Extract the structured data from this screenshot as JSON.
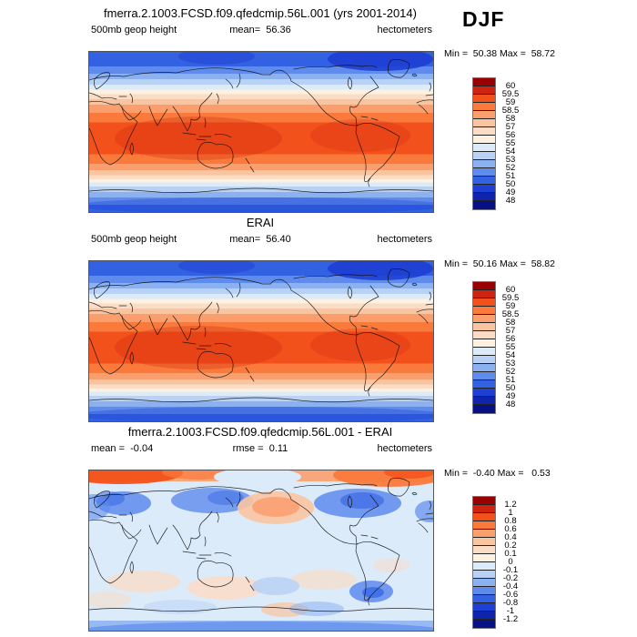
{
  "season_label": "DJF",
  "chart_data": {
    "type": "heatmap",
    "subtype": "filled-contour-world-maps",
    "season": "DJF",
    "projection": "cylindrical-equidistant-pacific-centered",
    "palette": [
      "#9b0000",
      "#ce2310",
      "#f3511b",
      "#fa7a3c",
      "#fb9e6e",
      "#f9c4a0",
      "#fbdcc5",
      "#fdf1e2",
      "#dcebfa",
      "#b8d1f5",
      "#8cb1f0",
      "#5e8bec",
      "#3261e2",
      "#1e3fd3",
      "#0e24ad",
      "#071185"
    ],
    "panels": [
      {
        "id": "model",
        "title": "fmerra.2.1003.FCSD.f09.qfedcmip.56L.001 (yrs 2001-2014)",
        "left_label": "500mb geop height",
        "center_label": "mean=  56.36",
        "units": "hectometers",
        "minmax_label": "Min =  50.38 Max =  58.72",
        "stats": {
          "mean": 56.36,
          "min": 50.38,
          "max": 58.72
        },
        "map_kind": "mean",
        "colorbar_levels": [
          "60",
          "59.5",
          "59",
          "58.5",
          "58",
          "57",
          "56",
          "55",
          "54",
          "53",
          "52",
          "51",
          "50",
          "49",
          "48"
        ]
      },
      {
        "id": "obs",
        "title": "ERAI",
        "left_label": "500mb geop height",
        "center_label": "mean=  56.40",
        "units": "hectometers",
        "minmax_label": "Min =  50.16 Max =  58.82",
        "stats": {
          "mean": 56.4,
          "min": 50.16,
          "max": 58.82
        },
        "map_kind": "mean",
        "colorbar_levels": [
          "60",
          "59.5",
          "59",
          "58.5",
          "58",
          "57",
          "56",
          "55",
          "54",
          "53",
          "52",
          "51",
          "50",
          "49",
          "48"
        ]
      },
      {
        "id": "diff",
        "title": "fmerra.2.1003.FCSD.f09.qfedcmip.56L.001 - ERAI",
        "left_label": "mean =  -0.04",
        "center_label": "rmse =  0.11",
        "units": "hectometers",
        "minmax_label": "Min =  -0.40 Max =   0.53",
        "stats": {
          "mean": -0.04,
          "rmse": 0.11,
          "min": -0.4,
          "max": 0.53
        },
        "map_kind": "diff",
        "colorbar_levels": [
          "1.2",
          "1",
          "0.8",
          "0.6",
          "0.4",
          "0.2",
          "0.1",
          "0",
          "-0.1",
          "-0.2",
          "-0.4",
          "-0.6",
          "-0.8",
          "-1",
          "-1.2"
        ]
      }
    ]
  }
}
